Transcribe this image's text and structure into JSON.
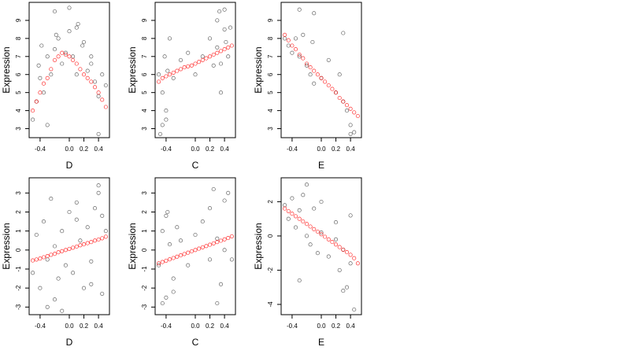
{
  "chart_data": [
    {
      "type": "scatter",
      "xlabel": "D",
      "ylabel": "Expression",
      "xlim": [
        -0.55,
        0.55
      ],
      "ylim": [
        2.5,
        10.0
      ],
      "xticks": [
        -0.4,
        0.0,
        0.2,
        0.4
      ],
      "xtick_labels": [
        "-0.4",
        "0.0",
        "0.2",
        "0.4"
      ],
      "yticks": [
        3,
        4,
        5,
        6,
        7,
        8,
        9
      ],
      "ytick_labels": [
        "3",
        "4",
        "5",
        "6",
        "7",
        "8",
        "9"
      ],
      "series": [
        {
          "color": "#000000",
          "x": [
            -0.5,
            -0.45,
            -0.42,
            -0.38,
            -0.35,
            -0.3,
            -0.25,
            -0.2,
            -0.18,
            -0.15,
            -0.1,
            -0.05,
            0.0,
            0.05,
            0.1,
            0.12,
            0.18,
            0.25,
            0.3,
            0.35,
            0.4,
            0.45,
            0.5,
            -0.4,
            -0.2,
            0.0,
            0.2,
            0.4,
            -0.3,
            0.1,
            0.3
          ],
          "y": [
            3.5,
            4.5,
            6.5,
            7.6,
            5.0,
            7.0,
            6.0,
            7.4,
            8.2,
            8.0,
            6.6,
            7.2,
            8.4,
            7.0,
            6.0,
            8.8,
            7.6,
            6.2,
            7.0,
            5.6,
            4.8,
            6.0,
            5.4,
            5.8,
            9.5,
            9.7,
            7.8,
            2.7,
            3.2,
            8.6,
            6.6
          ]
        },
        {
          "color": "#ff0000",
          "x": [
            -0.5,
            -0.45,
            -0.4,
            -0.35,
            -0.3,
            -0.25,
            -0.2,
            -0.15,
            -0.1,
            -0.05,
            0.0,
            0.05,
            0.1,
            0.15,
            0.2,
            0.25,
            0.3,
            0.35,
            0.4,
            0.45,
            0.5
          ],
          "y": [
            4.0,
            4.5,
            5.0,
            5.5,
            5.8,
            6.3,
            6.8,
            7.0,
            7.2,
            7.1,
            7.0,
            6.8,
            6.6,
            6.3,
            6.0,
            5.8,
            5.6,
            5.3,
            5.0,
            4.6,
            4.2
          ]
        }
      ]
    },
    {
      "type": "scatter",
      "xlabel": "C",
      "ylabel": "Expression",
      "xlim": [
        -0.55,
        0.55
      ],
      "ylim": [
        2.5,
        10.0
      ],
      "xticks": [
        -0.4,
        0.0,
        0.2,
        0.4
      ],
      "xtick_labels": [
        "-0.4",
        "0.0",
        "0.2",
        "0.4"
      ],
      "yticks": [
        3,
        4,
        5,
        6,
        7,
        8,
        9
      ],
      "ytick_labels": [
        "3",
        "4",
        "5",
        "6",
        "7",
        "8",
        "9"
      ],
      "series": [
        {
          "color": "#000000",
          "x": [
            -0.5,
            -0.48,
            -0.45,
            -0.42,
            -0.4,
            -0.38,
            -0.35,
            -0.3,
            -0.2,
            -0.1,
            0.0,
            0.1,
            0.2,
            0.25,
            0.3,
            0.33,
            0.35,
            0.4,
            0.42,
            0.45,
            0.48,
            -0.45,
            -0.4,
            0.35,
            0.4,
            0.3
          ],
          "y": [
            6.0,
            2.7,
            5.0,
            7.0,
            3.5,
            6.2,
            8.0,
            5.8,
            6.8,
            7.2,
            6.0,
            7.0,
            8.0,
            6.5,
            9.0,
            9.5,
            6.6,
            8.5,
            7.8,
            7.0,
            8.6,
            3.2,
            4.0,
            5.0,
            9.6,
            7.5
          ]
        },
        {
          "color": "#ff0000",
          "x": [
            -0.5,
            -0.45,
            -0.4,
            -0.35,
            -0.3,
            -0.25,
            -0.2,
            -0.15,
            -0.1,
            -0.05,
            0.0,
            0.05,
            0.1,
            0.15,
            0.2,
            0.25,
            0.3,
            0.35,
            0.4,
            0.45,
            0.5
          ],
          "y": [
            5.6,
            5.8,
            5.9,
            6.0,
            6.1,
            6.2,
            6.3,
            6.4,
            6.45,
            6.5,
            6.6,
            6.7,
            6.8,
            6.9,
            7.0,
            7.1,
            7.2,
            7.3,
            7.4,
            7.5,
            7.6
          ]
        }
      ]
    },
    {
      "type": "scatter",
      "xlabel": "E",
      "ylabel": "Expression",
      "xlim": [
        -0.55,
        0.55
      ],
      "ylim": [
        2.5,
        10.0
      ],
      "xticks": [
        -0.4,
        0.0,
        0.2,
        0.4
      ],
      "xtick_labels": [
        "-0.4",
        "0.0",
        "0.2",
        "0.4"
      ],
      "yticks": [
        3,
        4,
        5,
        6,
        7,
        8,
        9
      ],
      "ytick_labels": [
        "3",
        "4",
        "5",
        "6",
        "7",
        "8",
        "9"
      ],
      "series": [
        {
          "color": "#000000",
          "x": [
            -0.5,
            -0.45,
            -0.4,
            -0.35,
            -0.3,
            -0.25,
            -0.2,
            -0.15,
            -0.12,
            -0.1,
            0.0,
            0.1,
            0.2,
            0.25,
            0.3,
            0.35,
            0.4,
            0.45,
            -0.3,
            -0.1,
            0.3,
            0.4
          ],
          "y": [
            8.0,
            7.6,
            7.2,
            8.0,
            7.0,
            8.2,
            6.5,
            6.0,
            7.8,
            5.5,
            5.8,
            6.8,
            5.0,
            6.0,
            8.3,
            4.0,
            3.2,
            2.8,
            9.6,
            9.4,
            4.5,
            2.7
          ]
        },
        {
          "color": "#ff0000",
          "x": [
            -0.5,
            -0.45,
            -0.4,
            -0.35,
            -0.3,
            -0.25,
            -0.2,
            -0.15,
            -0.1,
            -0.05,
            0.0,
            0.05,
            0.1,
            0.15,
            0.2,
            0.25,
            0.3,
            0.35,
            0.4,
            0.45,
            0.5
          ],
          "y": [
            8.2,
            7.9,
            7.6,
            7.4,
            7.1,
            6.9,
            6.6,
            6.4,
            6.2,
            6.0,
            5.8,
            5.6,
            5.4,
            5.2,
            5.0,
            4.7,
            4.5,
            4.3,
            4.1,
            3.9,
            3.7
          ]
        }
      ]
    },
    {
      "type": "scatter",
      "xlabel": "D",
      "ylabel": "Expression",
      "xlim": [
        -0.55,
        0.55
      ],
      "ylim": [
        -3.4,
        3.8
      ],
      "xticks": [
        -0.4,
        0.0,
        0.2,
        0.4
      ],
      "xtick_labels": [
        "-0.4",
        "0.0",
        "0.2",
        "0.4"
      ],
      "yticks": [
        -3,
        -2,
        -1,
        0,
        1,
        2,
        3
      ],
      "ytick_labels": [
        "-3",
        "-2",
        "-1",
        "0",
        "1",
        "2",
        "3"
      ],
      "series": [
        {
          "color": "#000000",
          "x": [
            -0.5,
            -0.45,
            -0.4,
            -0.35,
            -0.3,
            -0.25,
            -0.2,
            -0.15,
            -0.1,
            -0.05,
            0.0,
            0.05,
            0.1,
            0.15,
            0.2,
            0.25,
            0.3,
            0.35,
            0.4,
            0.45,
            0.5,
            -0.3,
            -0.1,
            0.1,
            0.3,
            0.45,
            0.4,
            -0.2
          ],
          "y": [
            -1.2,
            0.8,
            -2.0,
            1.5,
            -0.5,
            2.7,
            0.2,
            -1.5,
            1.0,
            -0.8,
            2.0,
            -1.2,
            1.6,
            0.5,
            -2.0,
            1.2,
            -0.6,
            2.2,
            3.4,
            -2.3,
            1.0,
            -3.0,
            -3.2,
            2.5,
            -1.8,
            1.8,
            3.0,
            -2.6
          ]
        },
        {
          "color": "#ff0000",
          "x": [
            -0.5,
            -0.45,
            -0.4,
            -0.35,
            -0.3,
            -0.25,
            -0.2,
            -0.15,
            -0.1,
            -0.05,
            0.0,
            0.05,
            0.1,
            0.15,
            0.2,
            0.25,
            0.3,
            0.35,
            0.4,
            0.45,
            0.5
          ],
          "y": [
            -0.55,
            -0.5,
            -0.45,
            -0.38,
            -0.32,
            -0.25,
            -0.2,
            -0.12,
            -0.06,
            0.0,
            0.06,
            0.12,
            0.18,
            0.25,
            0.3,
            0.36,
            0.42,
            0.5,
            0.55,
            0.62,
            0.7
          ]
        }
      ]
    },
    {
      "type": "scatter",
      "xlabel": "C",
      "ylabel": "Expression",
      "xlim": [
        -0.55,
        0.55
      ],
      "ylim": [
        -3.4,
        3.8
      ],
      "xticks": [
        -0.4,
        0.0,
        0.2,
        0.4
      ],
      "xtick_labels": [
        "-0.4",
        "0.0",
        "0.2",
        "0.4"
      ],
      "yticks": [
        -3,
        -2,
        -1,
        0,
        1,
        2,
        3
      ],
      "ytick_labels": [
        "-3",
        "-2",
        "-1",
        "0",
        "1",
        "2",
        "3"
      ],
      "series": [
        {
          "color": "#000000",
          "x": [
            -0.5,
            -0.45,
            -0.4,
            -0.38,
            -0.35,
            -0.3,
            -0.25,
            -0.2,
            -0.1,
            0.0,
            0.1,
            0.2,
            0.25,
            0.3,
            0.35,
            0.4,
            0.45,
            0.5,
            -0.45,
            -0.4,
            0.3,
            0.4,
            0.2,
            -0.3
          ],
          "y": [
            -0.8,
            1.0,
            -2.5,
            2.0,
            0.3,
            -1.5,
            1.2,
            0.5,
            -0.8,
            0.8,
            1.5,
            -0.5,
            3.2,
            0.6,
            -1.8,
            2.6,
            3.0,
            -0.5,
            -2.8,
            1.8,
            -2.8,
            0.0,
            2.2,
            -2.2
          ]
        },
        {
          "color": "#ff0000",
          "x": [
            -0.5,
            -0.45,
            -0.4,
            -0.35,
            -0.3,
            -0.25,
            -0.2,
            -0.15,
            -0.1,
            -0.05,
            0.0,
            0.05,
            0.1,
            0.15,
            0.2,
            0.25,
            0.3,
            0.35,
            0.4,
            0.45,
            0.5
          ],
          "y": [
            -0.7,
            -0.63,
            -0.56,
            -0.49,
            -0.42,
            -0.35,
            -0.28,
            -0.21,
            -0.14,
            -0.07,
            0.0,
            0.07,
            0.14,
            0.21,
            0.28,
            0.35,
            0.42,
            0.49,
            0.56,
            0.63,
            0.72
          ]
        }
      ]
    },
    {
      "type": "scatter",
      "xlabel": "E",
      "ylabel": "Expression",
      "xlim": [
        -0.55,
        0.55
      ],
      "ylim": [
        -4.6,
        3.4
      ],
      "xticks": [
        -0.4,
        0.0,
        0.2,
        0.4
      ],
      "xtick_labels": [
        "-0.4",
        "0.0",
        "0.2",
        "0.4"
      ],
      "yticks": [
        -4,
        -2,
        0,
        2
      ],
      "ytick_labels": [
        "-4",
        "-2",
        "0",
        "2"
      ],
      "series": [
        {
          "color": "#000000",
          "x": [
            -0.5,
            -0.45,
            -0.4,
            -0.35,
            -0.3,
            -0.25,
            -0.2,
            -0.15,
            -0.1,
            -0.05,
            0.0,
            0.1,
            0.2,
            0.25,
            0.3,
            0.35,
            0.4,
            0.45,
            -0.2,
            0.0,
            0.3,
            0.4,
            -0.3,
            0.2
          ],
          "y": [
            1.8,
            1.0,
            2.2,
            0.5,
            1.5,
            2.4,
            0.0,
            -0.5,
            1.6,
            -1.0,
            0.2,
            -1.2,
            -0.2,
            -2.0,
            -0.8,
            -3.0,
            -1.6,
            -4.3,
            3.0,
            2.0,
            -3.2,
            1.2,
            -2.6,
            0.8
          ]
        },
        {
          "color": "#ff0000",
          "x": [
            -0.5,
            -0.45,
            -0.4,
            -0.35,
            -0.3,
            -0.25,
            -0.2,
            -0.15,
            -0.1,
            -0.05,
            0.0,
            0.05,
            0.1,
            0.15,
            0.2,
            0.25,
            0.3,
            0.35,
            0.4,
            0.45,
            0.5
          ],
          "y": [
            1.6,
            1.45,
            1.3,
            1.15,
            1.0,
            0.85,
            0.7,
            0.55,
            0.4,
            0.25,
            0.1,
            -0.05,
            -0.2,
            -0.35,
            -0.5,
            -0.65,
            -0.8,
            -0.95,
            -1.1,
            -1.3,
            -1.6
          ]
        }
      ]
    }
  ]
}
